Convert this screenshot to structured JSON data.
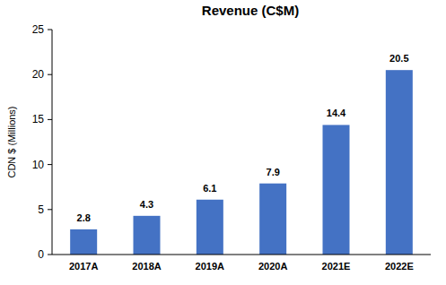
{
  "chart_data": {
    "type": "bar",
    "title": "Revenue (C$M)",
    "y_label": "CDN $ (Millions)",
    "categories": [
      "2017A",
      "2018A",
      "2019A",
      "2020A",
      "2021E",
      "2022E"
    ],
    "values": [
      2.8,
      4.3,
      6.1,
      7.9,
      14.4,
      20.5
    ],
    "color": "#4472c4",
    "ylim": [
      0,
      25
    ],
    "yticks": [
      0,
      5,
      10,
      15,
      20,
      25
    ],
    "grid": false,
    "data_labels": true
  }
}
